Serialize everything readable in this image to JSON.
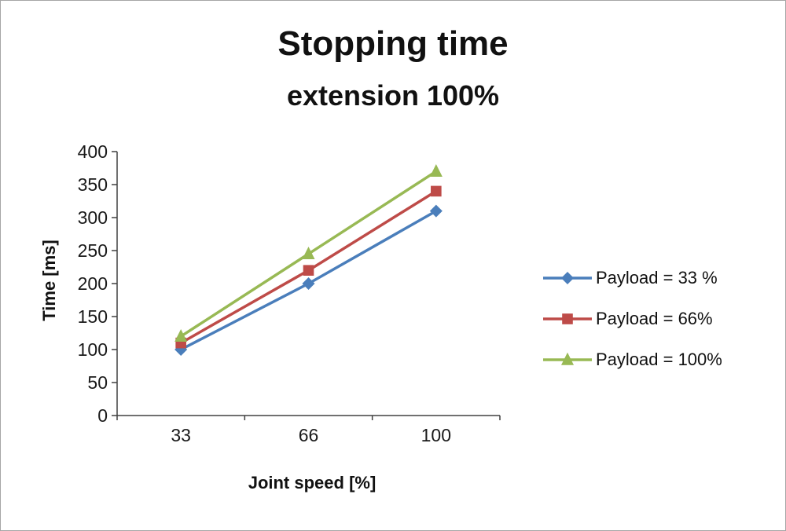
{
  "chart_data": {
    "type": "line",
    "title": "Stopping time",
    "subtitle": "extension 100%",
    "xlabel": "Joint speed [%]",
    "ylabel": "Time [ms]",
    "categories": [
      33,
      66,
      100
    ],
    "series": [
      {
        "name": "Payload = 33 %",
        "values": [
          100,
          200,
          310
        ],
        "color": "#4a7ebb",
        "marker": "diamond"
      },
      {
        "name": "Payload =  66%",
        "values": [
          110,
          220,
          340
        ],
        "color": "#be4b48",
        "marker": "square"
      },
      {
        "name": "Payload =  100%",
        "values": [
          120,
          245,
          370
        ],
        "color": "#98b954",
        "marker": "triangle"
      }
    ],
    "ylim": [
      0,
      400
    ],
    "ytick_step": 50,
    "grid": false,
    "legend_position": "right",
    "axis_color": "#404040",
    "text_color": "#1a1a1a"
  }
}
